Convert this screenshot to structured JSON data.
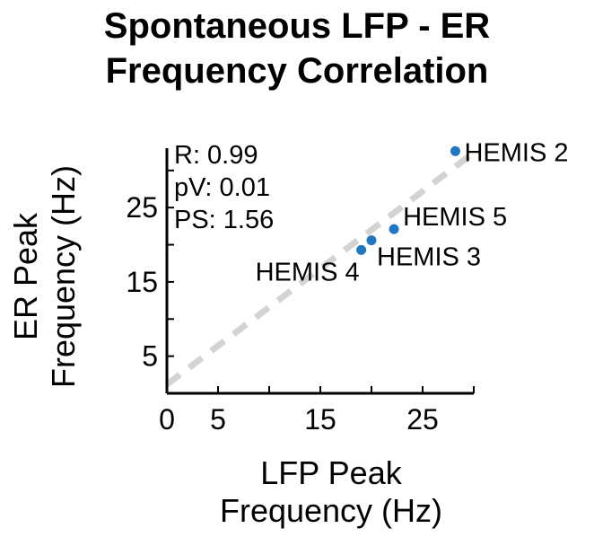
{
  "chart_data": {
    "type": "scatter",
    "title": [
      "Spontaneous LFP - ER",
      "Frequency Correlation"
    ],
    "xlabel": [
      "LFP Peak",
      "Frequency (Hz)"
    ],
    "ylabel": [
      "ER Peak",
      "Frequency (Hz)"
    ],
    "xlim": [
      0,
      30
    ],
    "ylim": [
      0,
      33
    ],
    "xticks": [
      0,
      5,
      15,
      25
    ],
    "yticks": [
      5,
      15,
      25
    ],
    "grid": false,
    "points": [
      {
        "label": "HEMIS 2",
        "x": 28.2,
        "y": 32.6
      },
      {
        "label": "HEMIS 5",
        "x": 22.2,
        "y": 22.1
      },
      {
        "label": "HEMIS 3",
        "x": 20.0,
        "y": 20.6
      },
      {
        "label": "HEMIS 4",
        "x": 19.0,
        "y": 19.3
      }
    ],
    "fit_line": {
      "x": [
        0,
        30
      ],
      "y": [
        1.2,
        32.4
      ],
      "style": "dashed",
      "color": "#d3d3d3"
    },
    "marker_color": "#1f77c4",
    "stats": {
      "r": "R: 0.99",
      "pv": "pV: 0.01",
      "ps": "PS: 1.56"
    }
  }
}
